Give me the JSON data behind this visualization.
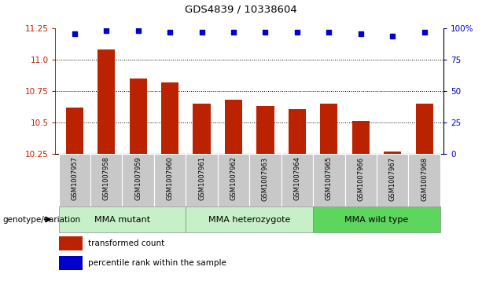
{
  "title": "GDS4839 / 10338604",
  "samples": [
    "GSM1007957",
    "GSM1007958",
    "GSM1007959",
    "GSM1007960",
    "GSM1007961",
    "GSM1007962",
    "GSM1007963",
    "GSM1007964",
    "GSM1007965",
    "GSM1007966",
    "GSM1007967",
    "GSM1007968"
  ],
  "transformed_count": [
    10.62,
    11.08,
    10.85,
    10.82,
    10.65,
    10.68,
    10.63,
    10.61,
    10.65,
    10.51,
    10.27,
    10.65
  ],
  "percentile_rank": [
    96,
    98,
    98,
    97,
    97,
    97,
    97,
    97,
    97,
    96,
    94,
    97
  ],
  "group_defs": [
    {
      "label": "MMA mutant",
      "start": 0,
      "end": 3,
      "color": "#C8F0C8"
    },
    {
      "label": "MMA heterozygote",
      "start": 4,
      "end": 7,
      "color": "#C8F0C8"
    },
    {
      "label": "MMA wild type",
      "start": 8,
      "end": 11,
      "color": "#5CD65C"
    }
  ],
  "ylim_left": [
    10.25,
    11.25
  ],
  "ylim_right": [
    0,
    100
  ],
  "yticks_left": [
    10.25,
    10.5,
    10.75,
    11.0,
    11.25
  ],
  "yticks_right": [
    0,
    25,
    50,
    75,
    100
  ],
  "bar_color": "#BB2200",
  "dot_color": "#0000CC",
  "bar_width": 0.55,
  "sample_bg": "#C8C8C8",
  "plot_bg": "#FFFFFF",
  "legend_red_label": "transformed count",
  "legend_blue_label": "percentile rank within the sample",
  "genotype_label": "genotype/variation"
}
